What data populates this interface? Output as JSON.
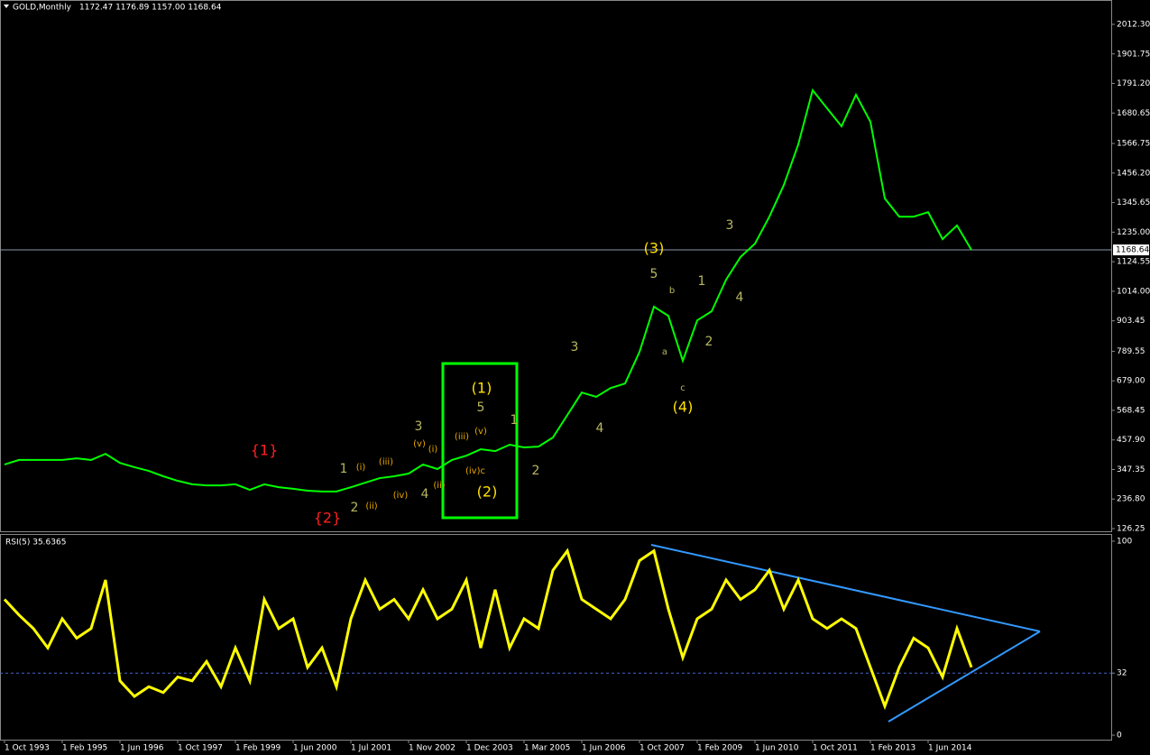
{
  "chart_data": [
    {
      "type": "line",
      "title": "GOLD,Monthly",
      "subtitle": "1172.47 1176.89 1157.00 1168.64",
      "x": [
        0,
        4,
        8,
        12,
        16,
        20,
        24,
        28,
        32,
        36,
        40,
        44,
        48,
        52,
        56,
        60,
        64,
        68,
        72,
        76,
        80,
        84,
        88,
        92,
        96,
        100,
        104,
        108,
        112,
        116,
        120,
        124,
        128,
        132,
        136,
        140,
        144,
        148,
        152,
        156,
        160,
        164,
        168,
        172,
        176,
        180,
        184,
        188,
        192,
        196,
        200,
        204,
        208,
        212,
        216,
        220,
        224,
        228,
        232,
        236,
        240,
        244,
        248,
        252,
        256,
        260,
        264,
        268
      ],
      "values": [
        366,
        383,
        383,
        383,
        383,
        389,
        383,
        406,
        372,
        356,
        342,
        322,
        305,
        292,
        288,
        288,
        292,
        271,
        292,
        281,
        275,
        268,
        265,
        265,
        281,
        298,
        315,
        322,
        332,
        366,
        349,
        383,
        399,
        423,
        416,
        440,
        430,
        433,
        467,
        551,
        635,
        619,
        652,
        669,
        787,
        956,
        922,
        754,
        905,
        939,
        1057,
        1142,
        1192,
        1293,
        1411,
        1563,
        1766,
        1698,
        1631,
        1749,
        1648,
        1361,
        1293,
        1293,
        1310,
        1209,
        1260,
        1169
      ],
      "color": "#00ff00",
      "xlim": [
        -1.25,
        306.75
      ],
      "ylim": [
        112.8,
        2103.4
      ],
      "yticks": [
        {
          "value": 2012.3,
          "label": "2012.30"
        },
        1901.75,
        {
          "value": 1791.2,
          "label": "1791.20"
        },
        1680.65,
        1566.75,
        {
          "value": 1456.2,
          "label": "1456.20"
        },
        1345.65,
        {
          "value": 1235,
          "label": "1235.00"
        },
        1124.55,
        {
          "value": 1014,
          "label": "1014.00"
        },
        903.45,
        789.55,
        {
          "value": 679,
          "label": "679.00"
        },
        568.45,
        {
          "value": 457.9,
          "label": "457.90"
        },
        347.35,
        {
          "value": 236.8,
          "label": "236.80"
        },
        126.25
      ],
      "last_price": 1168.64,
      "annotations": [
        {
          "text": "{1}",
          "color": "#ff2020"
        },
        {
          "text": "{2}",
          "color": "#ff2020"
        },
        {
          "text": "1",
          "color": "#b8b860"
        },
        {
          "text": "(i)",
          "color": "#e8a800"
        },
        {
          "text": "(iii)",
          "color": "#e8a800"
        },
        {
          "text": "2",
          "color": "#b8b860"
        },
        {
          "text": "(ii)",
          "color": "#e8a800"
        },
        {
          "text": "(iv)",
          "color": "#e8a800"
        },
        {
          "text": "3",
          "color": "#b8b860"
        },
        {
          "text": "(v)",
          "color": "#e8a800"
        },
        {
          "text": "(i)",
          "color": "#e8a800"
        },
        {
          "text": "4",
          "color": "#b8b860"
        },
        {
          "text": "(ii)",
          "color": "#e8a800"
        },
        {
          "text": "(iii)",
          "color": "#e8a800"
        },
        {
          "text": "(v)",
          "color": "#e8a800"
        },
        {
          "text": "(iv)c",
          "color": "#e8a800"
        },
        {
          "text": "(1)",
          "color": "#ffe000"
        },
        {
          "text": "5",
          "color": "#b8b860"
        },
        {
          "text": "(2)",
          "color": "#ffe000"
        },
        {
          "text": "1",
          "color": "#b8b860"
        },
        {
          "text": "2",
          "color": "#b8b860"
        },
        {
          "text": "3",
          "color": "#b8b860"
        },
        {
          "text": "4",
          "color": "#b8b860"
        },
        {
          "text": "(3)",
          "color": "#ffe000"
        },
        {
          "text": "5",
          "color": "#b8b860"
        },
        {
          "text": "b",
          "color": "#b8b860"
        },
        {
          "text": "a",
          "color": "#b8b860"
        },
        {
          "text": "c",
          "color": "#b8b860"
        },
        {
          "text": "(4)",
          "color": "#ffe000"
        },
        {
          "text": "1",
          "color": "#b8b860"
        },
        {
          "text": "2",
          "color": "#b8b860"
        },
        {
          "text": "3",
          "color": "#b8b860"
        },
        {
          "text": "4",
          "color": "#b8b860"
        }
      ]
    },
    {
      "type": "line",
      "title": "RSI(5) 35.6365",
      "x": [
        0,
        4,
        8,
        12,
        16,
        20,
        24,
        28,
        32,
        36,
        40,
        44,
        48,
        52,
        56,
        60,
        64,
        68,
        72,
        76,
        80,
        84,
        88,
        92,
        96,
        100,
        104,
        108,
        112,
        116,
        120,
        124,
        128,
        132,
        136,
        140,
        144,
        148,
        152,
        156,
        160,
        164,
        168,
        172,
        176,
        180,
        184,
        188,
        192,
        196,
        200,
        204,
        208,
        212,
        216,
        220,
        224,
        228,
        232,
        236,
        240,
        244,
        248,
        252,
        256,
        260,
        264,
        268
      ],
      "values": [
        70,
        62,
        55,
        45,
        60,
        50,
        55,
        80,
        28,
        20,
        25,
        22,
        30,
        28,
        38,
        25,
        45,
        28,
        70,
        55,
        60,
        35,
        45,
        25,
        60,
        80,
        65,
        70,
        60,
        75,
        60,
        65,
        80,
        45,
        75,
        45,
        60,
        55,
        85,
        95,
        70,
        65,
        60,
        70,
        90,
        95,
        65,
        40,
        60,
        65,
        80,
        70,
        75,
        85,
        65,
        80,
        60,
        55,
        60,
        55,
        35,
        15,
        35,
        50,
        45,
        30,
        55,
        35
      ],
      "color": "#ffff00",
      "xlim": [
        -1.25,
        306.75
      ],
      "ylim": [
        -2.3,
        103.7
      ],
      "yticks": [
        100,
        32,
        0
      ],
      "level": 32,
      "xticks": [
        {
          "value": 0,
          "label": "1 Oct 1993"
        },
        {
          "value": 16,
          "label": "1 Feb 1995"
        },
        {
          "value": 32,
          "label": "1 Jun 1996"
        },
        {
          "value": 48,
          "label": "1 Oct 1997"
        },
        {
          "value": 64,
          "label": "1 Feb 1999"
        },
        {
          "value": 80,
          "label": "1 Jun 2000"
        },
        {
          "value": 96,
          "label": "1 Jul 2001"
        },
        {
          "value": 112,
          "label": "1 Nov 2002"
        },
        {
          "value": 128,
          "label": "1 Dec 2003"
        },
        {
          "value": 144,
          "label": "1 Mar 2005"
        },
        {
          "value": 160,
          "label": "1 Jun 2006"
        },
        {
          "value": 176,
          "label": "1 Oct 2007"
        },
        {
          "value": 192,
          "label": "1 Feb 2009"
        },
        {
          "value": 208,
          "label": "1 Jun 2010"
        },
        {
          "value": 224,
          "label": "1 Oct 2011"
        },
        {
          "value": 240,
          "label": "1 Feb 2013"
        },
        {
          "value": 256,
          "label": "1 Jun 2014"
        }
      ]
    }
  ]
}
